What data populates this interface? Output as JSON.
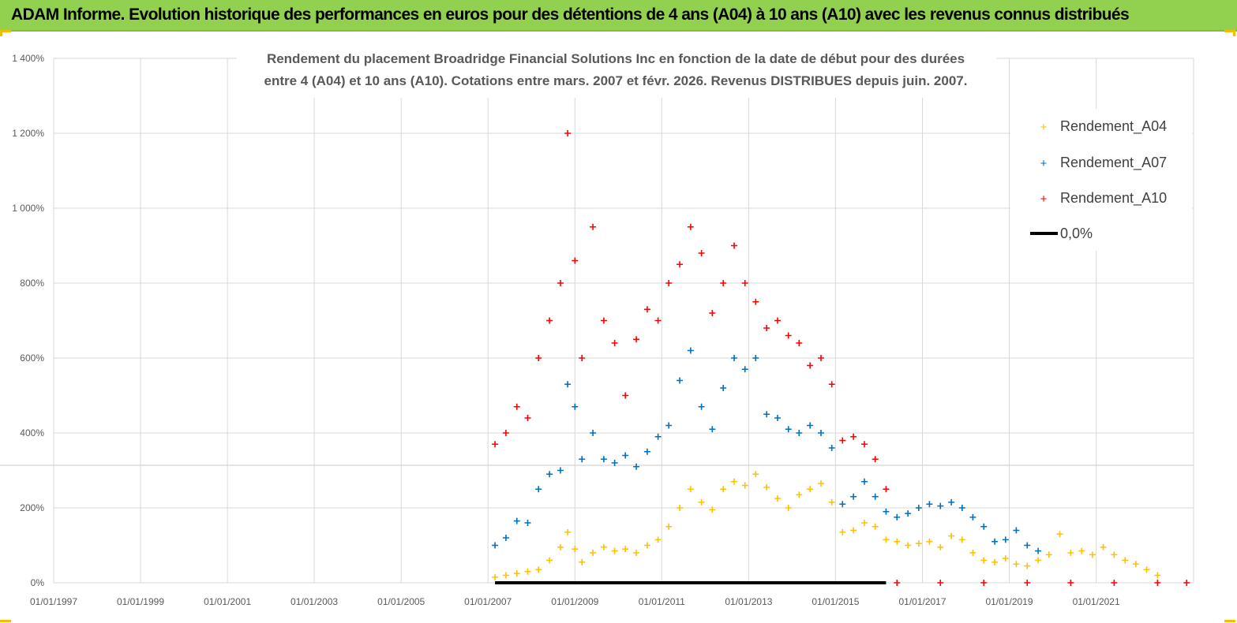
{
  "banner": {
    "title": "ADAM Informe. Evolution historique des performances en euros pour des détentions de 4 ans (A04) à 10 ans (A10) avec les revenus connus distribués"
  },
  "colors": {
    "banner_bg": "#92d050",
    "a04": "#ffc000",
    "a07": "#0070c0",
    "a10": "#ff0000",
    "zero": "#000000",
    "grid": "#d9d9d9"
  },
  "chart_data": {
    "type": "scatter",
    "title_lines": [
      "Rendement du placement Broadridge Financial Solutions Inc en fonction de la date de début pour des durées",
      "entre 4 (A04) et 10 ans (A10).  Cotations entre mars. 2007 et févr. 2026. Revenus DISTRIBUES depuis juin. 2007."
    ],
    "xlabel": "",
    "ylabel": "",
    "x_ticks": [
      "01/01/1997",
      "01/01/1999",
      "01/01/2001",
      "01/01/2003",
      "01/01/2005",
      "01/01/2007",
      "01/01/2009",
      "01/01/2011",
      "01/01/2013",
      "01/01/2015",
      "01/01/2017",
      "01/01/2019",
      "01/01/2021"
    ],
    "x_range": [
      "1997-01-01",
      "2023-03-31"
    ],
    "y_ticks": [
      "0%",
      "200%",
      "400%",
      "600%",
      "800%",
      "1 000%",
      "1 200%",
      "1 400%"
    ],
    "y_range_percent": [
      0,
      1400
    ],
    "grid": true,
    "legend_position": "top-right",
    "series": [
      {
        "name": "Rendement_A04",
        "color": "#ffc000",
        "marker": "+",
        "points": [
          [
            "2007-03-01",
            15
          ],
          [
            "2007-06-01",
            20
          ],
          [
            "2007-09-01",
            25
          ],
          [
            "2007-12-01",
            30
          ],
          [
            "2008-03-01",
            35
          ],
          [
            "2008-06-01",
            60
          ],
          [
            "2008-09-01",
            95
          ],
          [
            "2008-11-01",
            135
          ],
          [
            "2009-01-01",
            90
          ],
          [
            "2009-03-01",
            55
          ],
          [
            "2009-06-01",
            80
          ],
          [
            "2009-09-01",
            95
          ],
          [
            "2009-12-01",
            85
          ],
          [
            "2010-03-01",
            90
          ],
          [
            "2010-06-01",
            80
          ],
          [
            "2010-09-01",
            100
          ],
          [
            "2010-12-01",
            115
          ],
          [
            "2011-03-01",
            150
          ],
          [
            "2011-06-01",
            200
          ],
          [
            "2011-09-01",
            250
          ],
          [
            "2011-12-01",
            215
          ],
          [
            "2012-03-01",
            195
          ],
          [
            "2012-06-01",
            250
          ],
          [
            "2012-09-01",
            270
          ],
          [
            "2012-12-01",
            260
          ],
          [
            "2013-03-01",
            290
          ],
          [
            "2013-06-01",
            255
          ],
          [
            "2013-09-01",
            225
          ],
          [
            "2013-12-01",
            200
          ],
          [
            "2014-03-01",
            235
          ],
          [
            "2014-06-01",
            250
          ],
          [
            "2014-09-01",
            265
          ],
          [
            "2014-12-01",
            215
          ],
          [
            "2015-03-01",
            135
          ],
          [
            "2015-06-01",
            140
          ],
          [
            "2015-09-01",
            160
          ],
          [
            "2015-12-01",
            150
          ],
          [
            "2016-03-01",
            115
          ],
          [
            "2016-06-01",
            110
          ],
          [
            "2016-09-01",
            100
          ],
          [
            "2016-12-01",
            105
          ],
          [
            "2017-03-01",
            110
          ],
          [
            "2017-06-01",
            95
          ],
          [
            "2017-09-01",
            125
          ],
          [
            "2017-12-01",
            115
          ],
          [
            "2018-03-01",
            80
          ],
          [
            "2018-06-01",
            60
          ],
          [
            "2018-09-01",
            55
          ],
          [
            "2018-12-01",
            65
          ],
          [
            "2019-03-01",
            50
          ],
          [
            "2019-06-01",
            45
          ],
          [
            "2019-09-01",
            60
          ],
          [
            "2019-12-01",
            75
          ],
          [
            "2020-03-01",
            130
          ],
          [
            "2020-06-01",
            80
          ],
          [
            "2020-09-01",
            85
          ],
          [
            "2020-12-01",
            75
          ],
          [
            "2021-03-01",
            95
          ],
          [
            "2021-06-01",
            75
          ],
          [
            "2021-09-01",
            60
          ],
          [
            "2021-12-01",
            50
          ],
          [
            "2022-03-01",
            35
          ],
          [
            "2022-06-01",
            20
          ]
        ]
      },
      {
        "name": "Rendement_A07",
        "color": "#0070c0",
        "marker": "+",
        "points": [
          [
            "2007-03-01",
            100
          ],
          [
            "2007-06-01",
            120
          ],
          [
            "2007-09-01",
            165
          ],
          [
            "2007-12-01",
            160
          ],
          [
            "2008-03-01",
            250
          ],
          [
            "2008-06-01",
            290
          ],
          [
            "2008-09-01",
            300
          ],
          [
            "2008-11-01",
            530
          ],
          [
            "2009-01-01",
            470
          ],
          [
            "2009-03-01",
            330
          ],
          [
            "2009-06-01",
            400
          ],
          [
            "2009-09-01",
            330
          ],
          [
            "2009-12-01",
            320
          ],
          [
            "2010-03-01",
            340
          ],
          [
            "2010-06-01",
            310
          ],
          [
            "2010-09-01",
            350
          ],
          [
            "2010-12-01",
            390
          ],
          [
            "2011-03-01",
            420
          ],
          [
            "2011-06-01",
            540
          ],
          [
            "2011-09-01",
            620
          ],
          [
            "2011-12-01",
            470
          ],
          [
            "2012-03-01",
            410
          ],
          [
            "2012-06-01",
            520
          ],
          [
            "2012-09-01",
            600
          ],
          [
            "2012-12-01",
            570
          ],
          [
            "2013-03-01",
            600
          ],
          [
            "2013-06-01",
            450
          ],
          [
            "2013-09-01",
            440
          ],
          [
            "2013-12-01",
            410
          ],
          [
            "2014-03-01",
            400
          ],
          [
            "2014-06-01",
            420
          ],
          [
            "2014-09-01",
            400
          ],
          [
            "2014-12-01",
            360
          ],
          [
            "2015-03-01",
            210
          ],
          [
            "2015-06-01",
            230
          ],
          [
            "2015-09-01",
            270
          ],
          [
            "2015-12-01",
            230
          ],
          [
            "2016-03-01",
            190
          ],
          [
            "2016-06-01",
            175
          ],
          [
            "2016-09-01",
            185
          ],
          [
            "2016-12-01",
            200
          ],
          [
            "2017-03-01",
            210
          ],
          [
            "2017-06-01",
            205
          ],
          [
            "2017-09-01",
            215
          ],
          [
            "2017-12-01",
            200
          ],
          [
            "2018-03-01",
            175
          ],
          [
            "2018-06-01",
            150
          ],
          [
            "2018-09-01",
            110
          ],
          [
            "2018-12-01",
            115
          ],
          [
            "2019-03-01",
            140
          ],
          [
            "2019-06-01",
            100
          ],
          [
            "2019-09-01",
            85
          ]
        ]
      },
      {
        "name": "Rendement_A10",
        "color": "#ff0000",
        "marker": "+",
        "points": [
          [
            "2007-03-01",
            370
          ],
          [
            "2007-06-01",
            400
          ],
          [
            "2007-09-01",
            470
          ],
          [
            "2007-12-01",
            440
          ],
          [
            "2008-03-01",
            600
          ],
          [
            "2008-06-01",
            700
          ],
          [
            "2008-09-01",
            800
          ],
          [
            "2008-11-01",
            1200
          ],
          [
            "2009-01-01",
            860
          ],
          [
            "2009-03-01",
            600
          ],
          [
            "2009-06-01",
            950
          ],
          [
            "2009-09-01",
            700
          ],
          [
            "2009-12-01",
            640
          ],
          [
            "2010-03-01",
            500
          ],
          [
            "2010-06-01",
            650
          ],
          [
            "2010-09-01",
            730
          ],
          [
            "2010-12-01",
            700
          ],
          [
            "2011-03-01",
            800
          ],
          [
            "2011-06-01",
            850
          ],
          [
            "2011-09-01",
            950
          ],
          [
            "2011-12-01",
            880
          ],
          [
            "2012-03-01",
            720
          ],
          [
            "2012-06-01",
            800
          ],
          [
            "2012-09-01",
            900
          ],
          [
            "2012-12-01",
            800
          ],
          [
            "2013-03-01",
            750
          ],
          [
            "2013-06-01",
            680
          ],
          [
            "2013-09-01",
            700
          ],
          [
            "2013-12-01",
            660
          ],
          [
            "2014-03-01",
            640
          ],
          [
            "2014-06-01",
            580
          ],
          [
            "2014-09-01",
            600
          ],
          [
            "2014-12-01",
            530
          ],
          [
            "2015-03-01",
            380
          ],
          [
            "2015-06-01",
            390
          ],
          [
            "2015-09-01",
            370
          ],
          [
            "2015-12-01",
            330
          ],
          [
            "2016-03-01",
            250
          ],
          [
            "2016-06-01",
            0
          ],
          [
            "2017-06-01",
            0
          ],
          [
            "2018-06-01",
            0
          ],
          [
            "2019-06-01",
            0
          ],
          [
            "2020-06-01",
            0
          ],
          [
            "2021-06-01",
            0
          ],
          [
            "2022-06-01",
            0
          ],
          [
            "2023-02-01",
            0
          ]
        ]
      }
    ],
    "reference_line": {
      "name": "0,0%",
      "value": 0,
      "color": "#000000",
      "x_from": "2007-03-01",
      "x_to": "2016-03-01"
    }
  }
}
